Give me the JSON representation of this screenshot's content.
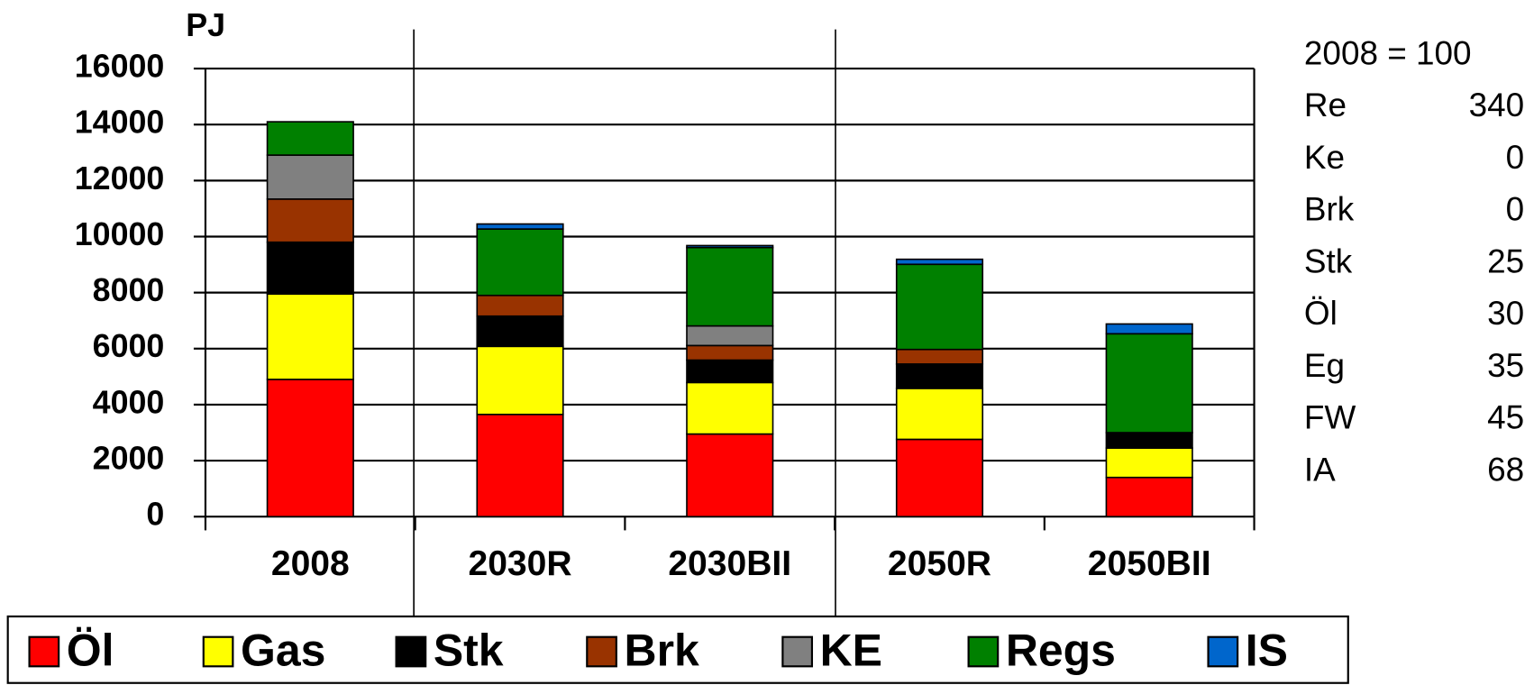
{
  "chart_data": {
    "type": "stacked_bar",
    "y_axis_label": "PJ",
    "categories": [
      "2008",
      "2030R",
      "2030BII",
      "2050R",
      "2050BII"
    ],
    "series": [
      {
        "name": "Öl",
        "color": "#ff0000",
        "values": [
          4900,
          3650,
          2950,
          2760,
          1400
        ]
      },
      {
        "name": "Gas",
        "color": "#ffff00",
        "values": [
          3050,
          2430,
          1840,
          1820,
          1050
        ]
      },
      {
        "name": "Stk",
        "color": "#000000",
        "values": [
          1850,
          1080,
          800,
          870,
          550
        ]
      },
      {
        "name": "Brk",
        "color": "#993300",
        "values": [
          1540,
          740,
          520,
          520,
          0
        ]
      },
      {
        "name": "KE",
        "color": "#808080",
        "values": [
          1570,
          0,
          700,
          0,
          0
        ]
      },
      {
        "name": "Regs",
        "color": "#008000",
        "values": [
          1190,
          2370,
          2800,
          3040,
          3530
        ]
      },
      {
        "name": "IS",
        "color": "#0066cc",
        "values": [
          0,
          180,
          70,
          180,
          350
        ]
      }
    ],
    "ylim": [
      0,
      16000
    ],
    "yticks": [
      0,
      2000,
      4000,
      6000,
      8000,
      10000,
      12000,
      14000,
      16000
    ],
    "grid": true,
    "legend": "bottom",
    "index_table": {
      "header": "2008 = 100",
      "rows": [
        [
          "Re",
          340
        ],
        [
          "Ke",
          0
        ],
        [
          "Brk",
          0
        ],
        [
          "Stk",
          25
        ],
        [
          "Öl",
          30
        ],
        [
          "Eg",
          35
        ],
        [
          "FW",
          45
        ],
        [
          "IA",
          68
        ]
      ]
    }
  }
}
